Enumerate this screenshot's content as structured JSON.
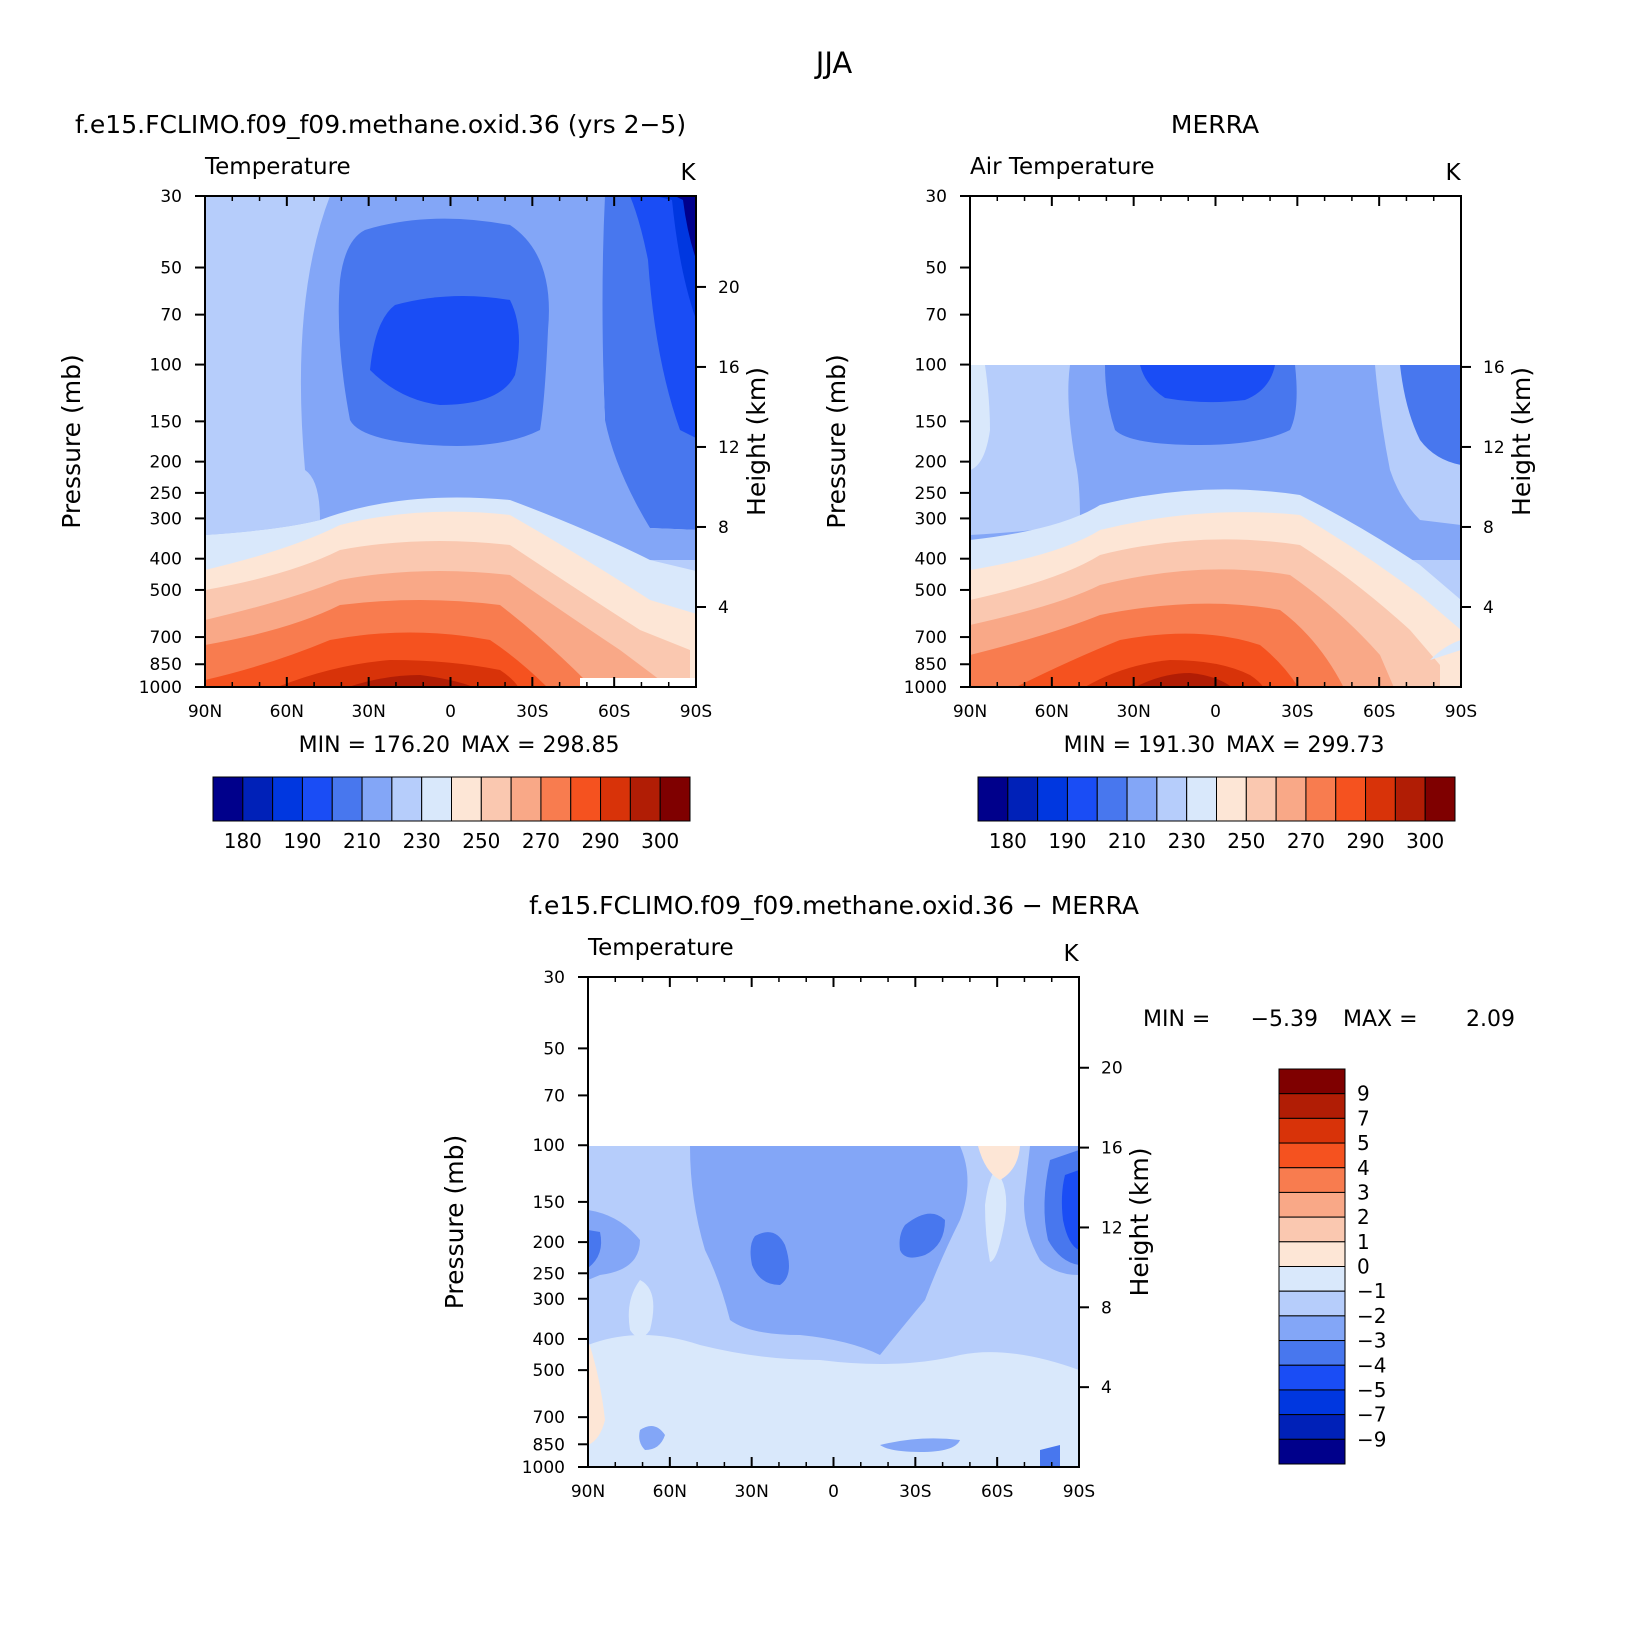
{
  "figure": {
    "season": "JJA"
  },
  "chart_data": [
    {
      "id": "model",
      "type": "contour",
      "title": "f.e15.FCLIMO.f09_f09.methane.oxid.36 (yrs 2−5)",
      "left_label": "Temperature",
      "units": "K",
      "ylabel": "Pressure (mb)",
      "y2label": "Height (km)",
      "x_tick_labels": [
        "90N",
        "60N",
        "30N",
        "0",
        "30S",
        "60S",
        "90S"
      ],
      "xlim": [
        90,
        -90
      ],
      "p_ticks": [
        30,
        50,
        70,
        100,
        150,
        200,
        250,
        300,
        400,
        500,
        700,
        850,
        1000
      ],
      "p_tick_labels": [
        "30",
        "50",
        "70",
        "100",
        "150",
        "200",
        "250",
        "300",
        "400",
        "500",
        "700",
        "850",
        "1000"
      ],
      "ylim_mb": [
        1000,
        30
      ],
      "height_ticks_km": [
        4,
        8,
        12,
        16,
        20
      ],
      "height_tick_labels": [
        "4",
        "8",
        "12",
        "16",
        "20"
      ],
      "data_top_mb": 30,
      "min_label": "MIN = 176.20",
      "max_label": "MAX = 298.85",
      "min": 176.2,
      "max": 298.85
    },
    {
      "id": "merra",
      "type": "contour",
      "title": "MERRA",
      "left_label": "Air Temperature",
      "units": "K",
      "ylabel": "Pressure (mb)",
      "y2label": "Height (km)",
      "x_tick_labels": [
        "90N",
        "60N",
        "30N",
        "0",
        "30S",
        "60S",
        "90S"
      ],
      "xlim": [
        90,
        -90
      ],
      "p_ticks": [
        30,
        50,
        70,
        100,
        150,
        200,
        250,
        300,
        400,
        500,
        700,
        850,
        1000
      ],
      "p_tick_labels": [
        "30",
        "50",
        "70",
        "100",
        "150",
        "200",
        "250",
        "300",
        "400",
        "500",
        "700",
        "850",
        "1000"
      ],
      "ylim_mb": [
        1000,
        30
      ],
      "height_ticks_km": [
        4,
        8,
        12,
        16
      ],
      "height_tick_labels": [
        "4",
        "8",
        "12",
        "16"
      ],
      "data_top_mb": 100,
      "min_label": "MIN = 191.30",
      "max_label": "MAX = 299.73",
      "min": 191.3,
      "max": 299.73
    },
    {
      "id": "diff",
      "type": "contour",
      "title": "f.e15.FCLIMO.f09_f09.methane.oxid.36 − MERRA",
      "left_label": "Temperature",
      "units": "K",
      "ylabel": "Pressure (mb)",
      "y2label": "Height (km)",
      "x_tick_labels": [
        "90N",
        "60N",
        "30N",
        "0",
        "30S",
        "60S",
        "90S"
      ],
      "xlim": [
        90,
        -90
      ],
      "p_ticks": [
        30,
        50,
        70,
        100,
        150,
        200,
        250,
        300,
        400,
        500,
        700,
        850,
        1000
      ],
      "p_tick_labels": [
        "30",
        "50",
        "70",
        "100",
        "150",
        "200",
        "250",
        "300",
        "400",
        "500",
        "700",
        "850",
        "1000"
      ],
      "ylim_mb": [
        1000,
        30
      ],
      "height_ticks_km": [
        4,
        8,
        12,
        16,
        20
      ],
      "height_tick_labels": [
        "4",
        "8",
        "12",
        "16",
        "20"
      ],
      "data_top_mb": 100,
      "min_label": "MIN =",
      "min_value": "−5.39",
      "max_label": "MAX =",
      "max_value": "2.09",
      "min": -5.39,
      "max": 2.09
    }
  ],
  "colorbar_abs": {
    "colors": [
      "#00008b",
      "#0021b8",
      "#0037e0",
      "#1a4df5",
      "#4877ee",
      "#83a6f7",
      "#b6cdfb",
      "#d9e8fb",
      "#fde6d6",
      "#fac8b0",
      "#f9a887",
      "#f87c4f",
      "#f5521f",
      "#d83309",
      "#b11d05",
      "#7f0000"
    ],
    "labels": [
      "180",
      "190",
      "210",
      "230",
      "250",
      "270",
      "290",
      "300"
    ]
  },
  "colorbar_diff": {
    "colors": [
      "#7f0000",
      "#b11d05",
      "#d83309",
      "#f5521f",
      "#f87c4f",
      "#f9a887",
      "#fac8b0",
      "#fde6d6",
      "#d9e8fb",
      "#b6cdfb",
      "#83a6f7",
      "#4877ee",
      "#1a4df5",
      "#0037e0",
      "#0021b8",
      "#00008b"
    ],
    "labels": [
      "9",
      "7",
      "5",
      "4",
      "3",
      "2",
      "1",
      "0",
      "−1",
      "−2",
      "−3",
      "−4",
      "−5",
      "−7",
      "−9"
    ]
  }
}
